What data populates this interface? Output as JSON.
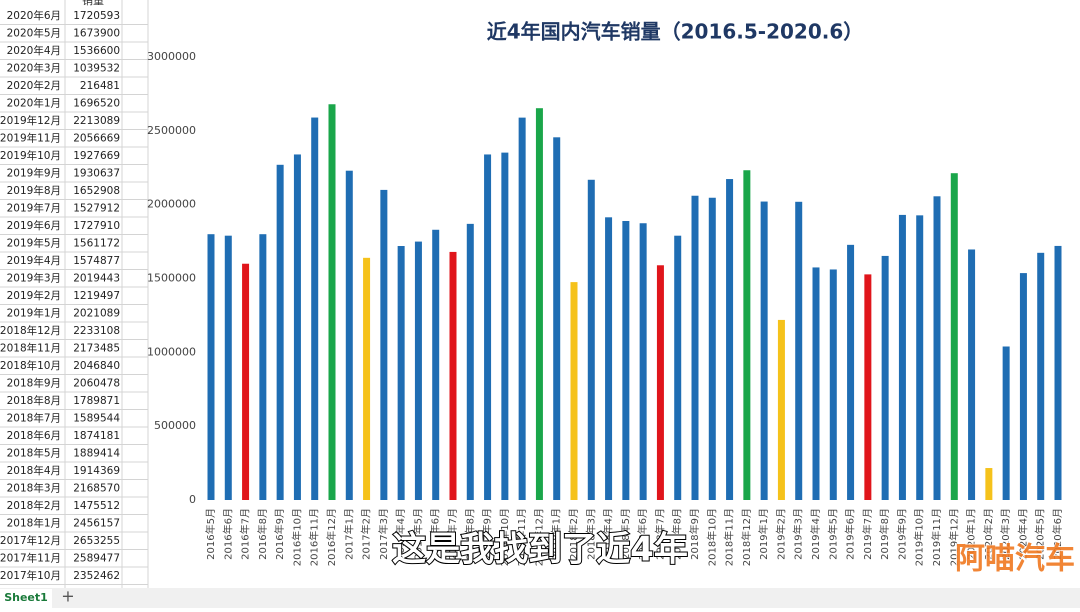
{
  "table": {
    "header": "销量",
    "rows": [
      [
        "2020年6月",
        "1720593"
      ],
      [
        "2020年5月",
        "1673900"
      ],
      [
        "2020年4月",
        "1536600"
      ],
      [
        "2020年3月",
        "1039532"
      ],
      [
        "2020年2月",
        "216481"
      ],
      [
        "2020年1月",
        "1696520"
      ],
      [
        "2019年12月",
        "2213089"
      ],
      [
        "2019年11月",
        "2056669"
      ],
      [
        "2019年10月",
        "1927669"
      ],
      [
        "2019年9月",
        "1930637"
      ],
      [
        "2019年8月",
        "1652908"
      ],
      [
        "2019年7月",
        "1527912"
      ],
      [
        "2019年6月",
        "1727910"
      ],
      [
        "2019年5月",
        "1561172"
      ],
      [
        "2019年4月",
        "1574877"
      ],
      [
        "2019年3月",
        "2019443"
      ],
      [
        "2019年2月",
        "1219497"
      ],
      [
        "2019年1月",
        "2021089"
      ],
      [
        "2018年12月",
        "2233108"
      ],
      [
        "2018年11月",
        "2173485"
      ],
      [
        "2018年10月",
        "2046840"
      ],
      [
        "2018年9月",
        "2060478"
      ],
      [
        "2018年8月",
        "1789871"
      ],
      [
        "2018年7月",
        "1589544"
      ],
      [
        "2018年6月",
        "1874181"
      ],
      [
        "2018年5月",
        "1889414"
      ],
      [
        "2018年4月",
        "1914369"
      ],
      [
        "2018年3月",
        "2168570"
      ],
      [
        "2018年2月",
        "1475512"
      ],
      [
        "2018年1月",
        "2456157"
      ],
      [
        "2017年12月",
        "2653255"
      ],
      [
        "2017年11月",
        "2589477"
      ],
      [
        "2017年10月",
        "2352462"
      ]
    ]
  },
  "chart_data": {
    "type": "bar",
    "title": "近4年国内汽车销量（2016.5-2020.6）",
    "categories": [
      "2016年5月",
      "2016年6月",
      "2016年7月",
      "2016年8月",
      "2016年9月",
      "2016年10月",
      "2016年11月",
      "2016年12月",
      "2017年1月",
      "2017年2月",
      "2017年3月",
      "2017年4月",
      "2017年5月",
      "2017年6月",
      "2017年7月",
      "2017年8月",
      "2017年9月",
      "2017年10月",
      "2017年11月",
      "2017年12月",
      "2018年1月",
      "2018年2月",
      "2018年3月",
      "2018年4月",
      "2018年5月",
      "2018年6月",
      "2018年7月",
      "2018年8月",
      "2018年9月",
      "2018年10月",
      "2018年11月",
      "2018年12月",
      "2019年1月",
      "2019年2月",
      "2019年3月",
      "2019年4月",
      "2019年5月",
      "2019年6月",
      "2019年7月",
      "2019年8月",
      "2019年9月",
      "2019年10月",
      "2019年11月",
      "2019年12月",
      "2020年1月",
      "2020年2月",
      "2020年3月",
      "2020年4月",
      "2020年5月",
      "2020年6月"
    ],
    "values": [
      1800000,
      1790000,
      1600000,
      1800000,
      2270000,
      2340000,
      2590000,
      2680000,
      2230000,
      1640000,
      2100000,
      1720000,
      1750000,
      1830000,
      1680000,
      1870000,
      2340000,
      2352462,
      2589477,
      2653255,
      2456157,
      1475512,
      2168570,
      1914369,
      1889414,
      1874181,
      1589544,
      1789871,
      2060478,
      2046840,
      2173485,
      2233108,
      2021089,
      1219497,
      2019443,
      1574877,
      1561172,
      1727910,
      1527912,
      1652908,
      1930637,
      1927669,
      2056669,
      2213089,
      1696520,
      216481,
      1039532,
      1536600,
      1673900,
      1720593
    ],
    "colors": [
      "#1f6db3",
      "#1f6db3",
      "#e0151b",
      "#1f6db3",
      "#1f6db3",
      "#1f6db3",
      "#1f6db3",
      "#1aa64a",
      "#1f6db3",
      "#f5c21b",
      "#1f6db3",
      "#1f6db3",
      "#1f6db3",
      "#1f6db3",
      "#e0151b",
      "#1f6db3",
      "#1f6db3",
      "#1f6db3",
      "#1f6db3",
      "#1aa64a",
      "#1f6db3",
      "#f5c21b",
      "#1f6db3",
      "#1f6db3",
      "#1f6db3",
      "#1f6db3",
      "#e0151b",
      "#1f6db3",
      "#1f6db3",
      "#1f6db3",
      "#1f6db3",
      "#1aa64a",
      "#1f6db3",
      "#f5c21b",
      "#1f6db3",
      "#1f6db3",
      "#1f6db3",
      "#1f6db3",
      "#e0151b",
      "#1f6db3",
      "#1f6db3",
      "#1f6db3",
      "#1f6db3",
      "#1aa64a",
      "#1f6db3",
      "#f5c21b",
      "#1f6db3",
      "#1f6db3",
      "#1f6db3",
      "#1f6db3"
    ],
    "ylim": [
      0,
      3000000
    ],
    "yticks": [
      0,
      500000,
      1000000,
      1500000,
      2000000,
      2500000,
      3000000
    ]
  },
  "caption": "这是我找到了近4年",
  "watermark": "阿喵汽车",
  "sheet_tab": "Sheet1"
}
